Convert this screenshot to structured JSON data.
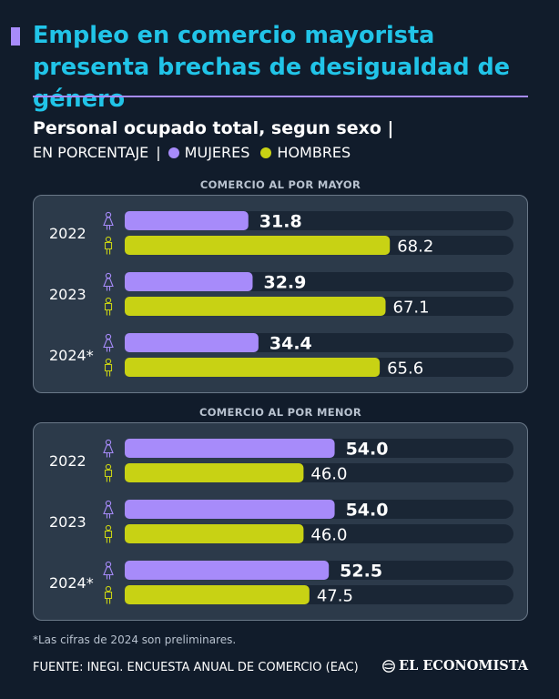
{
  "title": "Empleo en comercio mayorista presenta brechas de desigualdad de género",
  "subtitle": "Personal ocupado total, segun sexo |",
  "legend": {
    "unit": "EN PORCENTAJE",
    "separator": "|",
    "women_label": "MUJERES",
    "men_label": "HOMBRES",
    "women_color": "#a78bfa",
    "men_color": "#c8d214"
  },
  "footnote": "*Las cifras de 2024 son preliminares.",
  "source": "FUENTE: INEGI. ENCUESTA ANUAL DE COMERCIO (EAC)",
  "brand": "EL ECONOMISTA",
  "chart_data": [
    {
      "type": "bar",
      "orientation": "horizontal",
      "title": "COMERCIO AL POR MAYOR",
      "categories": [
        "2022",
        "2023",
        "2024*"
      ],
      "series": [
        {
          "name": "MUJERES",
          "values": [
            31.8,
            32.9,
            34.4
          ]
        },
        {
          "name": "HOMBRES",
          "values": [
            68.2,
            67.1,
            65.6
          ]
        }
      ],
      "xlim": [
        0,
        100
      ],
      "labels": {
        "MUJERES": [
          "31.8",
          "32.9",
          "34.4"
        ],
        "HOMBRES": [
          "68.2",
          "67.1",
          "65.6"
        ]
      }
    },
    {
      "type": "bar",
      "orientation": "horizontal",
      "title": "COMERCIO AL POR MENOR",
      "categories": [
        "2022",
        "2023",
        "2024*"
      ],
      "series": [
        {
          "name": "MUJERES",
          "values": [
            54.0,
            54.0,
            52.5
          ]
        },
        {
          "name": "HOMBRES",
          "values": [
            46.0,
            46.0,
            47.5
          ]
        }
      ],
      "xlim": [
        0,
        100
      ],
      "labels": {
        "MUJERES": [
          "54.0",
          "54.0",
          "52.5"
        ],
        "HOMBRES": [
          "46.0",
          "46.0",
          "47.5"
        ]
      }
    }
  ]
}
